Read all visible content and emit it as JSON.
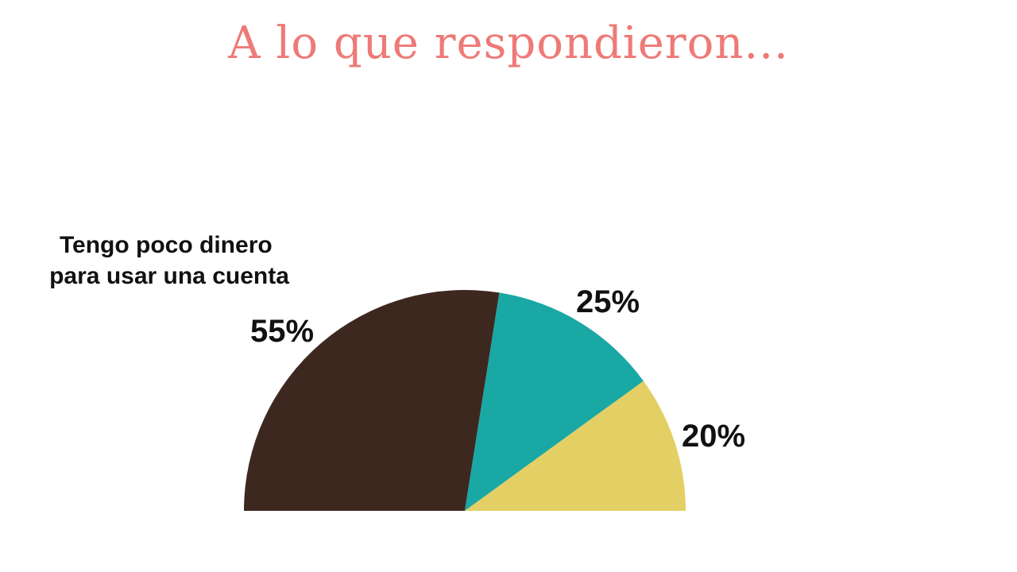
{
  "title": "A lo que respondieron...",
  "chart_data": {
    "type": "pie",
    "variant": "semicircle",
    "slices": [
      {
        "label": "55%",
        "value": 55,
        "color": "#3d2820",
        "category": "Tengo poco dinero para usar una cuenta"
      },
      {
        "label": "25%",
        "value": 25,
        "color": "#19a8a4",
        "category": ""
      },
      {
        "label": "20%",
        "value": 20,
        "color": "#e3cf64",
        "category": ""
      }
    ],
    "annotations": [
      {
        "text_lines": [
          "Tengo poco dinero",
          "para usar una cuenta"
        ],
        "slice": 0
      }
    ],
    "legend": "none"
  }
}
